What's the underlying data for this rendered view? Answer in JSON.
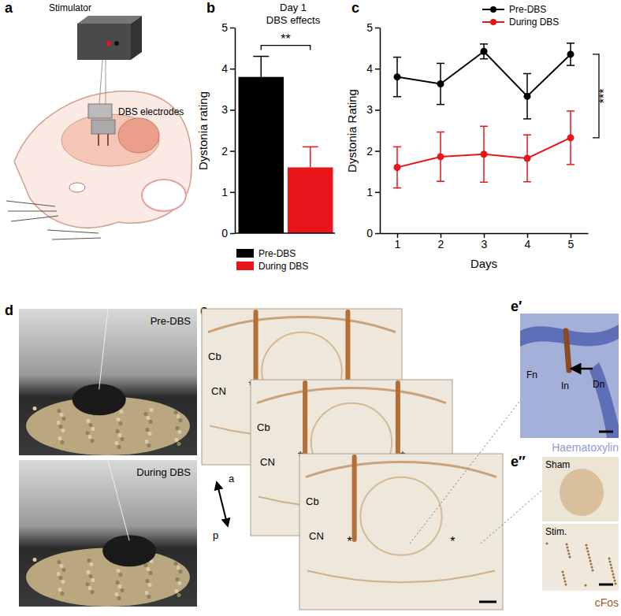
{
  "chart_data": [
    {
      "type": "bar",
      "title": "Day 1",
      "subtitle": "DBS effects",
      "ylabel": "Dystonia rating",
      "categories": [
        "Pre-DBS",
        "During DBS"
      ],
      "values": [
        3.8,
        1.6
      ],
      "errors": [
        0.5,
        0.5
      ],
      "colors": [
        "#000000",
        "#e8161b"
      ],
      "ylim": [
        0,
        5
      ],
      "yticks": [
        0,
        1,
        2,
        3,
        4,
        5
      ],
      "tick_labels": "y",
      "legend": "bottom",
      "annotations": [
        "**"
      ]
    },
    {
      "type": "line",
      "xlabel": "Days",
      "ylabel": "Dystonia Rating",
      "x": [
        1,
        2,
        3,
        4,
        5
      ],
      "xlim": [
        0.6,
        5.4
      ],
      "xticks": [
        1,
        2,
        3,
        4,
        5
      ],
      "ylim": [
        0,
        5
      ],
      "yticks": [
        0,
        1,
        2,
        3,
        4,
        5
      ],
      "legend": "top right",
      "marker": "circle",
      "series": [
        {
          "name": "Pre-DBS",
          "color": "#000000",
          "values": [
            3.8,
            3.63,
            4.42,
            3.33,
            4.35
          ],
          "errors": [
            0.48,
            0.5,
            0.18,
            0.55,
            0.27
          ]
        },
        {
          "name": "During DBS",
          "color": "#e8161b",
          "values": [
            1.6,
            1.86,
            1.92,
            1.82,
            2.32
          ],
          "errors": [
            0.5,
            0.6,
            0.68,
            0.57,
            0.65
          ]
        }
      ],
      "annotations": [
        "***"
      ]
    }
  ],
  "figure": {
    "panels": [
      {
        "label": "a",
        "texts": [
          "Stimulator",
          "DBS electrodes"
        ]
      },
      {
        "label": "b"
      },
      {
        "label": "c"
      },
      {
        "label": "d",
        "texts": [
          "Pre-DBS",
          "During DBS"
        ]
      },
      {
        "label": "e",
        "slices": [
          {
            "texts": [
              "Cb",
              "CN",
              "*",
              "*"
            ]
          },
          {
            "texts": [
              "Cb",
              "CN",
              "*",
              "*"
            ]
          },
          {
            "texts": [
              "Cb",
              "CN",
              "*",
              "*"
            ]
          }
        ],
        "axis": [
          "a",
          "p"
        ]
      },
      {
        "label": "e′",
        "texts": [
          "Fn",
          "In",
          "Dn"
        ],
        "stain": "Haematoxylin"
      },
      {
        "label": "e″",
        "texts": [
          "Sham",
          "Stim."
        ],
        "stain": "cFos"
      }
    ]
  }
}
